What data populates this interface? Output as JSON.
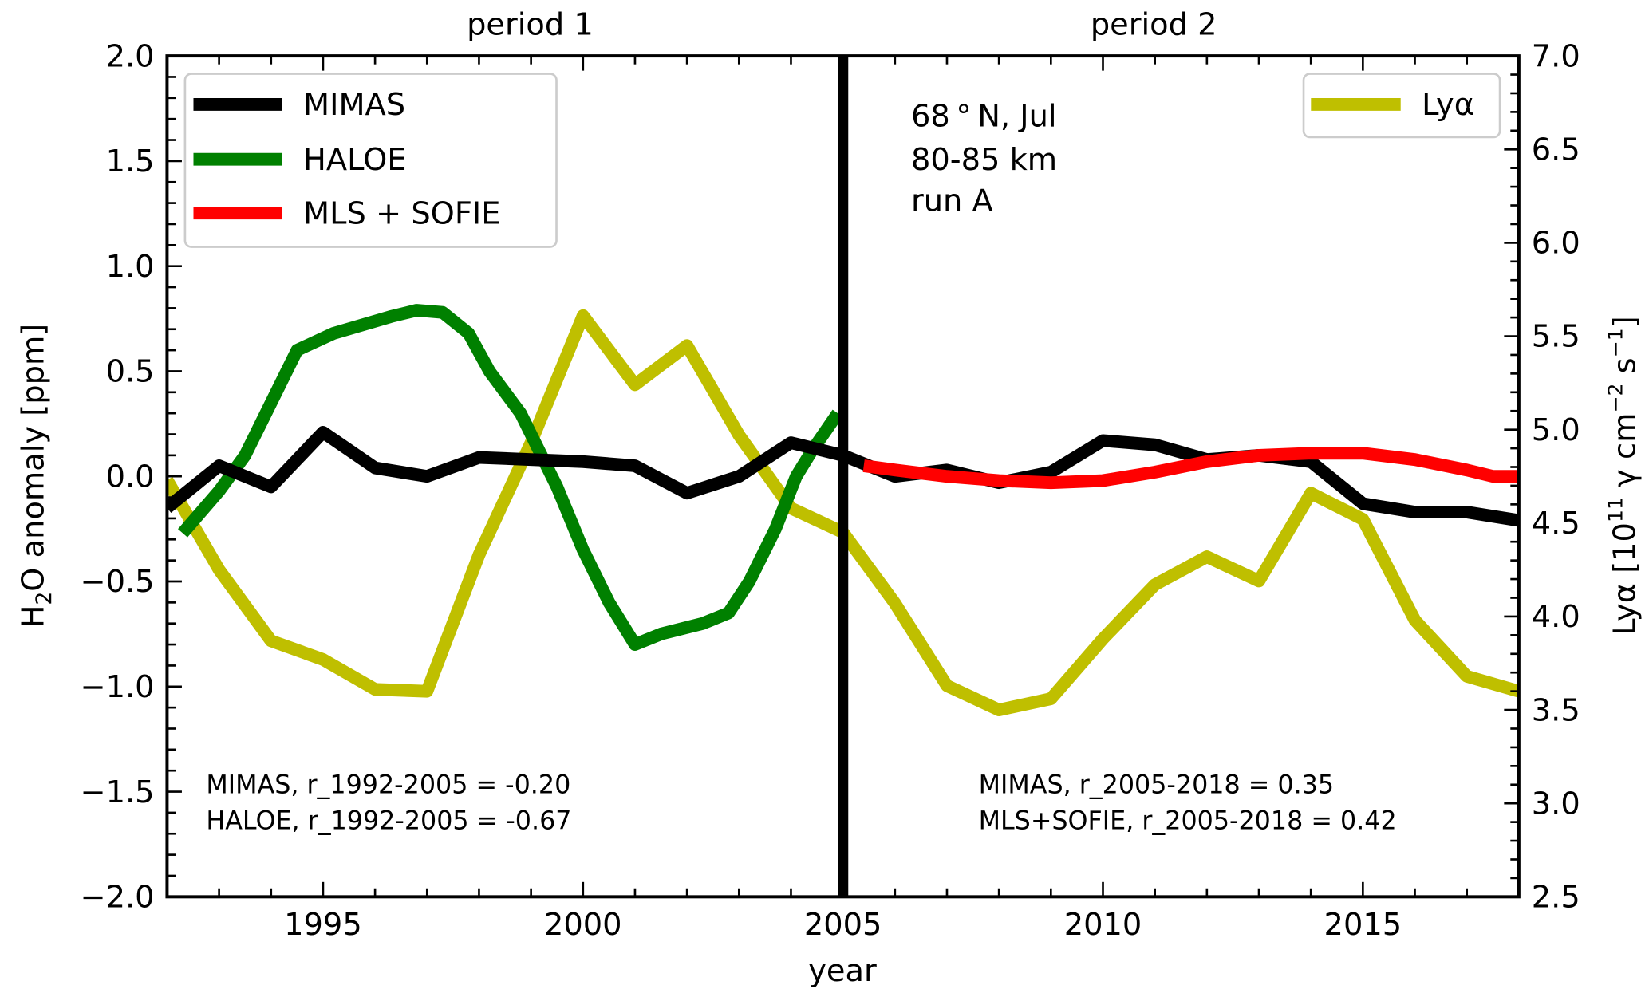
{
  "chart_data": {
    "type": "line",
    "xlabel": "year",
    "ylabel_left": "H2O anomaly [ppm]",
    "ylabel_right": "Lyα [10^11 γ cm^-2 s^-1]",
    "xlim": [
      1992,
      2018
    ],
    "ylim_left": [
      -2.0,
      2.0
    ],
    "ylim_right": [
      2.5,
      7.0
    ],
    "x_ticks": [
      "1995",
      "2000",
      "2005",
      "2010",
      "2015"
    ],
    "y_left_ticks": [
      "2.0",
      "1.5",
      "1.0",
      "0.5",
      "0.0",
      "−0.5",
      "−1.0",
      "−1.5",
      "−2.0"
    ],
    "y_right_ticks": [
      "7.0",
      "6.5",
      "6.0",
      "5.5",
      "5.0",
      "4.5",
      "4.0",
      "3.5",
      "3.0",
      "2.5"
    ],
    "period_labels": [
      "period 1",
      "period 2"
    ],
    "divider_year": 2005,
    "info_lines": [
      "68 ° N, Jul",
      "80-85 km",
      "run A"
    ],
    "annotations_left": [
      "MIMAS, r_1992-2005 = -0.20",
      "HALOE, r_1992-2005 = -0.67"
    ],
    "annotations_right": [
      "MIMAS, r_2005-2018 = 0.35",
      "MLS+SOFIE, r_2005-2018 = 0.42"
    ],
    "legend_left": [
      "MIMAS",
      "HALOE",
      "MLS + SOFIE"
    ],
    "legend_right": [
      "Lyα"
    ],
    "series": [
      {
        "name": "MIMAS",
        "axis": "left",
        "color": "#000000",
        "x": [
          1992,
          1993,
          1994,
          1995,
          1996,
          1997,
          1998,
          1999,
          2000,
          2001,
          2002,
          2003,
          2004,
          2005,
          2006,
          2007,
          2008,
          2009,
          2010,
          2011,
          2012,
          2013,
          2014,
          2015,
          2016,
          2017,
          2018
        ],
        "y": [
          -0.15,
          0.05,
          -0.05,
          0.21,
          0.04,
          0.0,
          0.09,
          0.08,
          0.07,
          0.05,
          -0.08,
          0.0,
          0.16,
          0.1,
          0.0,
          0.03,
          -0.03,
          0.02,
          0.17,
          0.15,
          0.08,
          0.1,
          0.07,
          -0.13,
          -0.17,
          -0.17,
          -0.21
        ]
      },
      {
        "name": "HALOE",
        "axis": "left",
        "color": "#008000",
        "x": [
          1992.3,
          1993,
          1993.5,
          1994.5,
          1995.2,
          1996.3,
          1996.8,
          1997.3,
          1997.8,
          1998.2,
          1998.8,
          1999.5,
          2000,
          2000.5,
          2001,
          2001.5,
          2002.3,
          2002.8,
          2003.2,
          2003.7,
          2004.1,
          2004.4,
          2004.9
        ],
        "y": [
          -0.27,
          -0.07,
          0.1,
          0.6,
          0.68,
          0.76,
          0.79,
          0.78,
          0.68,
          0.5,
          0.3,
          -0.05,
          -0.35,
          -0.6,
          -0.8,
          -0.75,
          -0.7,
          -0.65,
          -0.5,
          -0.25,
          0.0,
          0.12,
          0.3
        ]
      },
      {
        "name": "MLS + SOFIE",
        "axis": "left",
        "color": "#ff0000",
        "x": [
          2005.4,
          2006,
          2007,
          2008,
          2009,
          2010,
          2011,
          2012,
          2013,
          2014,
          2015,
          2016,
          2017,
          2017.5,
          2018
        ],
        "y": [
          0.05,
          0.03,
          0.0,
          -0.02,
          -0.03,
          -0.02,
          0.02,
          0.07,
          0.1,
          0.11,
          0.11,
          0.08,
          0.03,
          0.0,
          0.0
        ]
      },
      {
        "name": "Lyα",
        "axis": "right",
        "color": "#bfbf00",
        "x": [
          1992,
          1993,
          1994,
          1995,
          1996,
          1997,
          1998,
          1999,
          2000,
          2001,
          2002,
          2003,
          2004,
          2005,
          2006,
          2007,
          2008,
          2009,
          2010,
          2011,
          2012,
          2013,
          2014,
          2015,
          2016,
          2017,
          2018
        ],
        "y": [
          4.73,
          4.25,
          3.87,
          3.77,
          3.61,
          3.6,
          4.33,
          4.93,
          5.61,
          5.24,
          5.45,
          4.97,
          4.58,
          4.45,
          4.07,
          3.63,
          3.5,
          3.56,
          3.88,
          4.17,
          4.32,
          4.19,
          4.66,
          4.52,
          3.98,
          3.68,
          3.6
        ]
      }
    ]
  }
}
